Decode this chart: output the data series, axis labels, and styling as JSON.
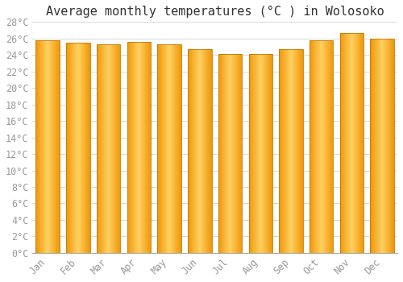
{
  "title": "Average monthly temperatures (°C ) in Wolosoko",
  "months": [
    "Jan",
    "Feb",
    "Mar",
    "Apr",
    "May",
    "Jun",
    "Jul",
    "Aug",
    "Sep",
    "Oct",
    "Nov",
    "Dec"
  ],
  "values": [
    25.8,
    25.5,
    25.3,
    25.6,
    25.3,
    24.7,
    24.1,
    24.1,
    24.7,
    25.8,
    26.7,
    26.0
  ],
  "bar_color_center": "#FFD060",
  "bar_color_edge": "#F0980A",
  "bar_outline_color": "#C07800",
  "ylim": [
    0,
    28
  ],
  "ytick_step": 2,
  "background_color": "#ffffff",
  "grid_color": "#d8d8d8",
  "title_fontsize": 11,
  "tick_fontsize": 8.5,
  "font_family": "monospace",
  "bar_width": 0.78,
  "figsize": [
    5.0,
    3.5
  ],
  "dpi": 100
}
